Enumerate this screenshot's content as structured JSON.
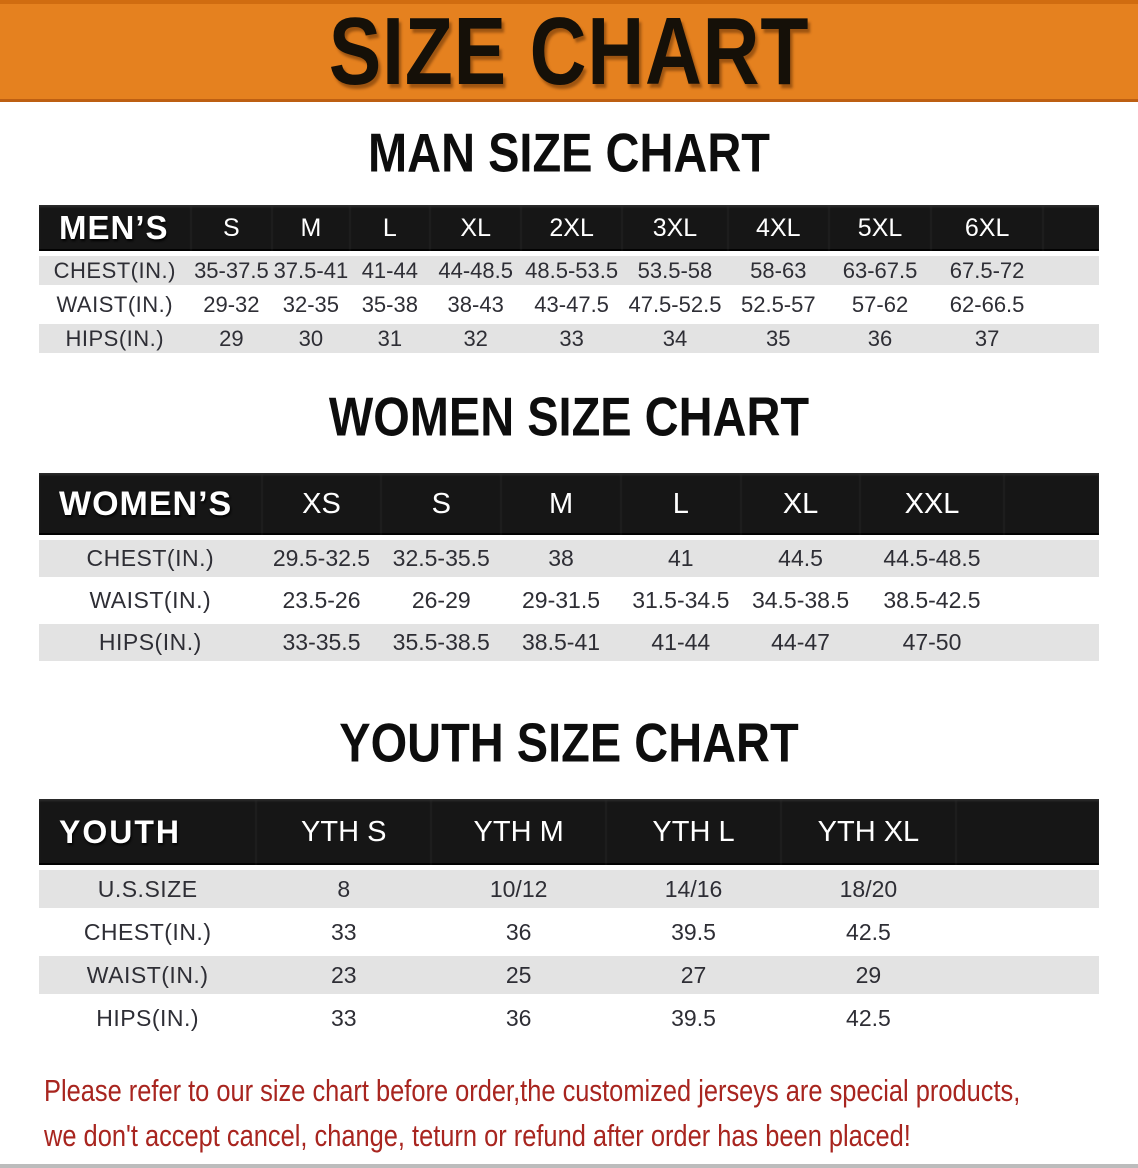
{
  "banner": {
    "title": "SIZE CHART"
  },
  "colors": {
    "banner_orange": "#e5811f",
    "table_header_black": "#161616",
    "row_stripe_gray": "#e3e3e3",
    "notice_red": "#a8251f"
  },
  "sections": [
    {
      "heading": "MAN SIZE CHART",
      "table": {
        "label": "MEN’S",
        "sizes": [
          "S",
          "M",
          "L",
          "XL",
          "2XL",
          "3XL",
          "4XL",
          "5XL",
          "6XL"
        ],
        "rows": [
          {
            "label": "CHEST(IN.)",
            "values": [
              "35-37.5",
              "37.5-41",
              "41-44",
              "44-48.5",
              "48.5-53.5",
              "53.5-58",
              "58-63",
              "63-67.5",
              "67.5-72"
            ]
          },
          {
            "label": "WAIST(IN.)",
            "values": [
              "29-32",
              "32-35",
              "35-38",
              "38-43",
              "43-47.5",
              "47.5-52.5",
              "52.5-57",
              "57-62",
              "62-66.5"
            ]
          },
          {
            "label": "HIPS(IN.)",
            "values": [
              "29",
              "30",
              "31",
              "32",
              "33",
              "34",
              "35",
              "36",
              "37"
            ]
          }
        ]
      }
    },
    {
      "heading": "WOMEN SIZE CHART",
      "table": {
        "label": "WOMEN’S",
        "sizes": [
          "XS",
          "S",
          "M",
          "L",
          "XL",
          "XXL"
        ],
        "rows": [
          {
            "label": "CHEST(IN.)",
            "values": [
              "29.5-32.5",
              "32.5-35.5",
              "38",
              "41",
              "44.5",
              "44.5-48.5"
            ]
          },
          {
            "label": "WAIST(IN.)",
            "values": [
              "23.5-26",
              "26-29",
              "29-31.5",
              "31.5-34.5",
              "34.5-38.5",
              "38.5-42.5"
            ]
          },
          {
            "label": "HIPS(IN.)",
            "values": [
              "33-35.5",
              "35.5-38.5",
              "38.5-41",
              "41-44",
              "44-47",
              "47-50"
            ]
          }
        ]
      }
    },
    {
      "heading": "YOUTH SIZE CHART",
      "table": {
        "label": "YOUTH",
        "sizes": [
          "YTH S",
          "YTH M",
          "YTH L",
          "YTH XL"
        ],
        "rows": [
          {
            "label": "U.S.SIZE",
            "values": [
              "8",
              "10/12",
              "14/16",
              "18/20"
            ]
          },
          {
            "label": "CHEST(IN.)",
            "values": [
              "33",
              "36",
              "39.5",
              "42.5"
            ]
          },
          {
            "label": "WAIST(IN.)",
            "values": [
              "23",
              "25",
              "27",
              "29"
            ]
          },
          {
            "label": "HIPS(IN.)",
            "values": [
              "33",
              "36",
              "39.5",
              "42.5"
            ]
          }
        ]
      }
    }
  ],
  "footer": {
    "line1": "Please refer to our size chart before order,the customized jerseys are special products,",
    "line2": "we don't accept cancel, change, teturn or refund after order has been placed!"
  }
}
